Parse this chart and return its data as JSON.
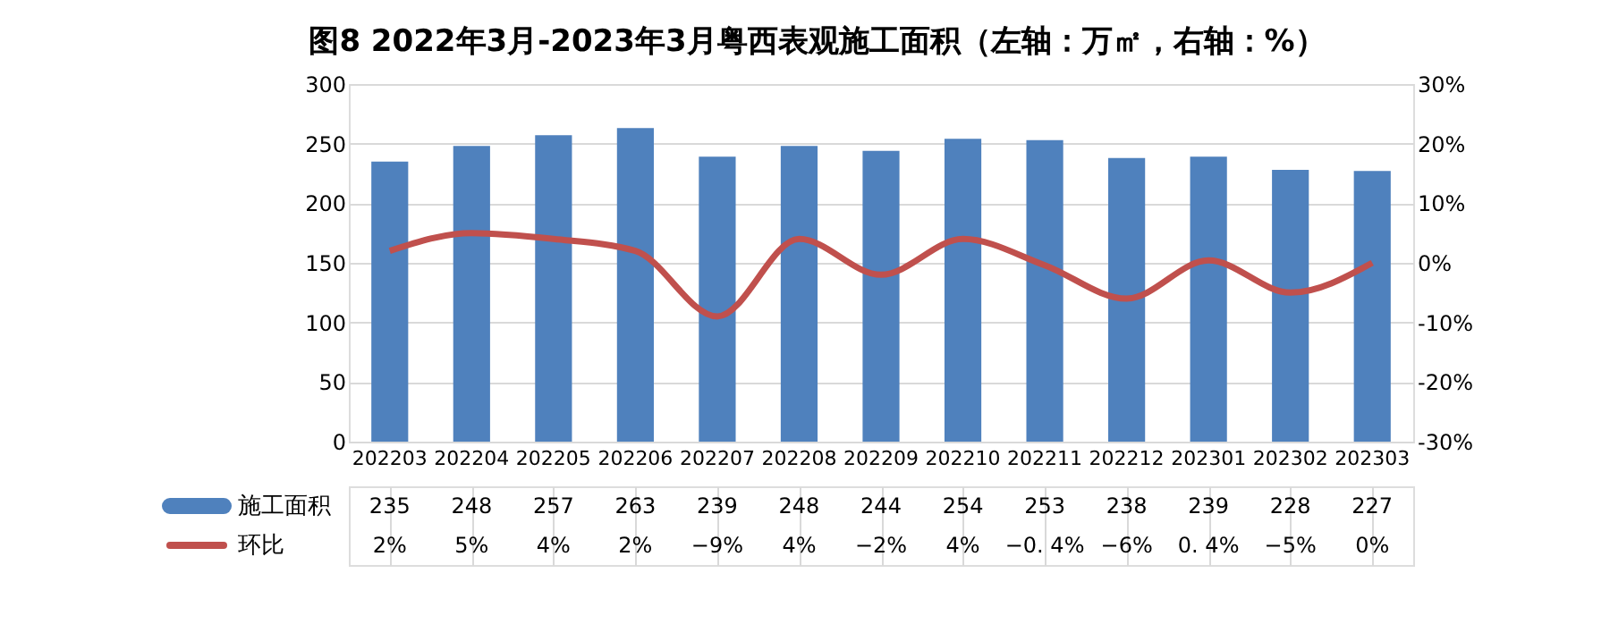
{
  "chart_data": {
    "type": "bar",
    "title": "图8 2022年3月-2023年3月粤西表观施工面积（左轴：万㎡，右轴：%）",
    "categories": [
      "202203",
      "202204",
      "202205",
      "202206",
      "202207",
      "202208",
      "202209",
      "202210",
      "202211",
      "202212",
      "202301",
      "202302",
      "202303"
    ],
    "series": [
      {
        "name": "施工面积",
        "type": "bar",
        "color": "#4f81bd",
        "values": [
          235,
          248,
          257,
          263,
          239,
          248,
          244,
          254,
          253,
          238,
          239,
          228,
          227
        ],
        "value_labels": [
          "235",
          "248",
          "257",
          "263",
          "239",
          "248",
          "244",
          "254",
          "253",
          "238",
          "239",
          "228",
          "227"
        ]
      },
      {
        "name": "环比",
        "type": "line",
        "axis": "y2",
        "color": "#c0504d",
        "values": [
          2,
          5,
          4,
          2,
          -9,
          4,
          -2,
          4,
          -0.4,
          -6,
          0.4,
          -5,
          0
        ],
        "value_labels": [
          "2%",
          "5%",
          "4%",
          "2%",
          "−9%",
          "4%",
          "−2%",
          "4%",
          "−0. 4%",
          "−6%",
          "0. 4%",
          "−5%",
          "0%"
        ]
      }
    ],
    "ylim": [
      0,
      300
    ],
    "yticks": [
      0,
      50,
      100,
      150,
      200,
      250,
      300
    ],
    "y2lim": [
      -30,
      30
    ],
    "y2ticks": [
      {
        "value": -30,
        "label": "-30%"
      },
      {
        "value": -20,
        "label": "-20%"
      },
      {
        "value": -10,
        "label": "-10%"
      },
      {
        "value": 0,
        "label": "0%"
      },
      {
        "value": 10,
        "label": "10%"
      },
      {
        "value": 20,
        "label": "20%"
      },
      {
        "value": 30,
        "label": "30%"
      }
    ],
    "grid": true,
    "legend": "bottom",
    "marker": "none",
    "line_style": "solid"
  }
}
